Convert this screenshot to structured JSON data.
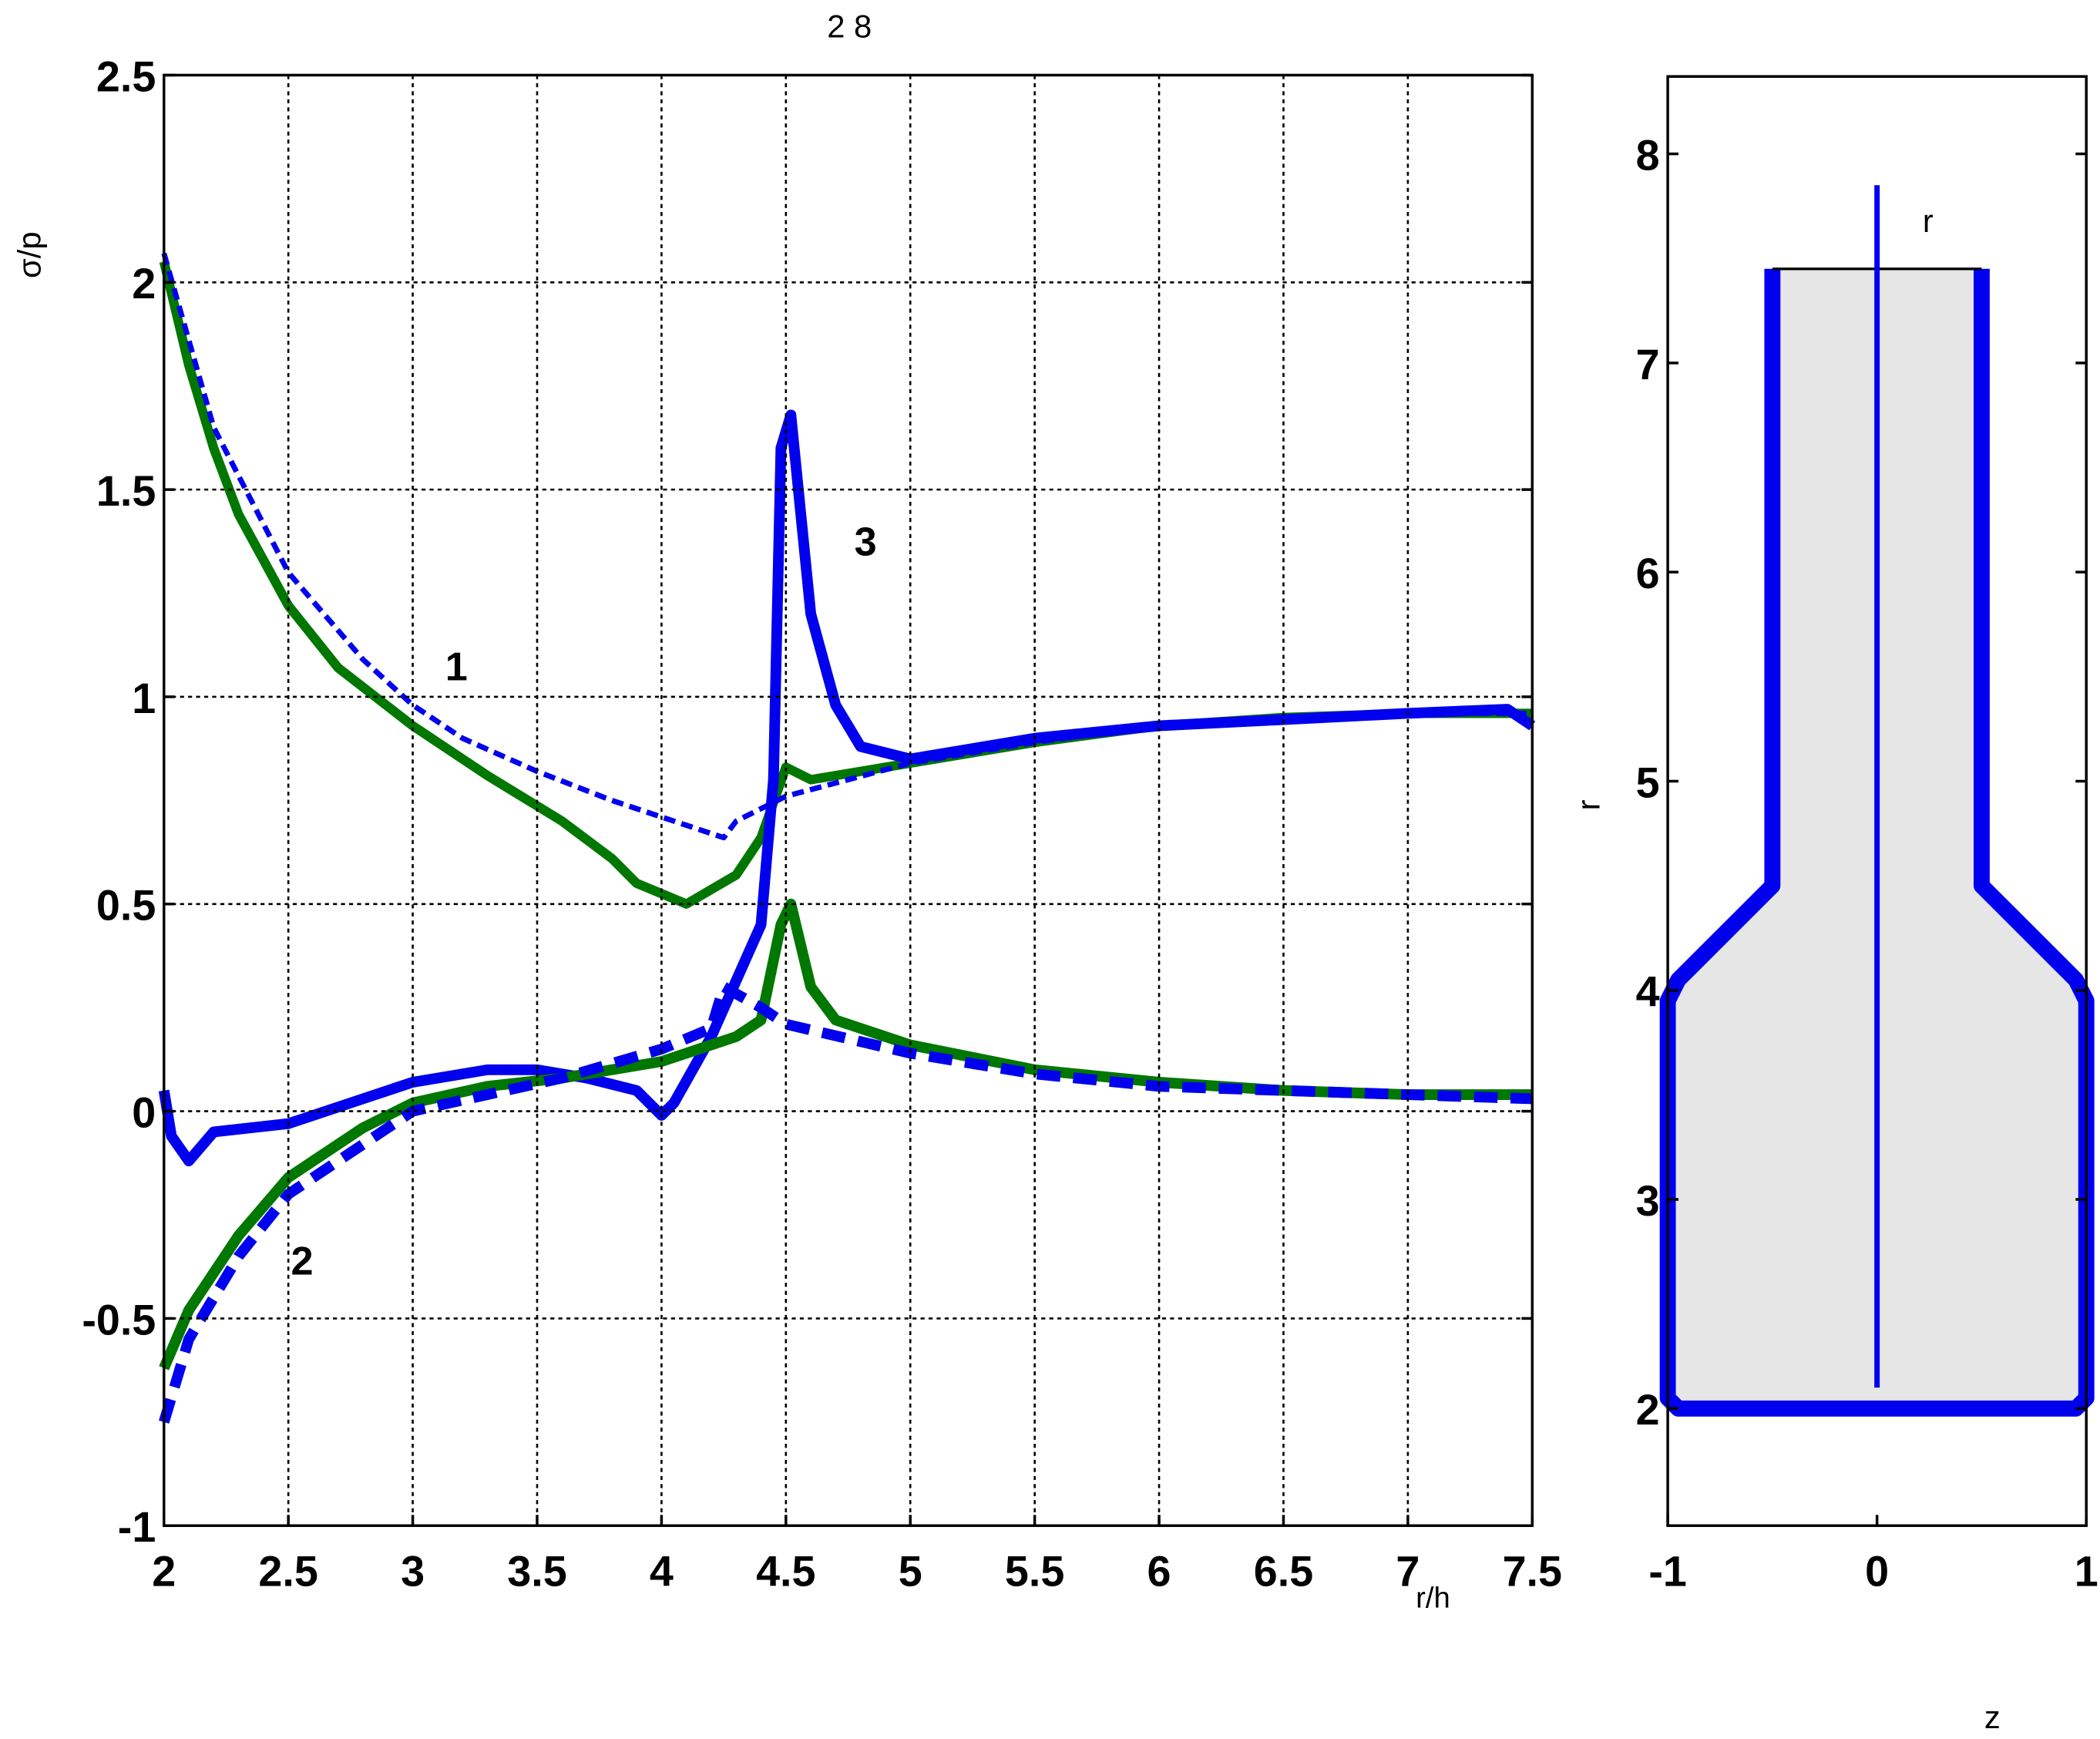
{
  "chart_data": [
    {
      "type": "line",
      "title": "2  8",
      "xlabel": "r/h",
      "ylabel": "σ/p",
      "xlim": [
        2,
        7.5
      ],
      "ylim": [
        -1,
        2.5
      ],
      "xticks": [
        2,
        2.5,
        3,
        3.5,
        4,
        4.5,
        5,
        5.5,
        6,
        6.5,
        7,
        7.5
      ],
      "yticks": [
        -1,
        -0.5,
        0,
        0.5,
        1,
        1.5,
        2,
        2.5
      ],
      "grid": true,
      "annotations": [
        "1",
        "2",
        "3"
      ],
      "series": [
        {
          "color": "#007700",
          "dash": false,
          "linewidth": 7,
          "x": [
            2,
            2.1,
            2.2,
            2.3,
            2.5,
            2.7,
            3,
            3.3,
            3.6,
            3.8,
            3.9,
            4.1,
            4.3,
            4.4,
            4.5,
            4.6,
            5,
            5.5,
            6,
            6.5,
            7,
            7.5
          ],
          "values": [
            2.05,
            1.8,
            1.6,
            1.44,
            1.22,
            1.07,
            0.93,
            0.81,
            0.7,
            0.61,
            0.55,
            0.5,
            0.57,
            0.66,
            0.83,
            0.8,
            0.84,
            0.89,
            0.93,
            0.95,
            0.96,
            0.96
          ]
        },
        {
          "color": "#0000ee",
          "dash": true,
          "linewidth": 4,
          "x": [
            2,
            2.2,
            2.5,
            2.8,
            3,
            3.2,
            3.5,
            3.8,
            4,
            4.2,
            4.25,
            4.3,
            4.5,
            5,
            5.5,
            6,
            7,
            7.5
          ],
          "values": [
            2.07,
            1.65,
            1.3,
            1.09,
            0.98,
            0.9,
            0.82,
            0.75,
            0.71,
            0.67,
            0.66,
            0.7,
            0.76,
            0.84,
            0.89,
            0.93,
            0.96,
            0.96
          ]
        },
        {
          "color": "#0000ee",
          "dash": false,
          "linewidth": 8,
          "x": [
            2,
            2.03,
            2.1,
            2.2,
            2.5,
            2.8,
            3,
            3.3,
            3.5,
            3.7,
            3.9,
            4,
            4.05,
            4.2,
            4.4,
            4.45,
            4.48,
            4.52,
            4.6,
            4.7,
            4.8,
            5,
            5.5,
            6,
            7,
            7.4,
            7.5
          ],
          "values": [
            0.05,
            -0.06,
            -0.12,
            -0.05,
            -0.03,
            0.03,
            0.07,
            0.1,
            0.1,
            0.08,
            0.05,
            -0.01,
            0.02,
            0.18,
            0.45,
            0.8,
            1.6,
            1.68,
            1.2,
            0.98,
            0.88,
            0.85,
            0.9,
            0.93,
            0.96,
            0.97,
            0.93
          ]
        },
        {
          "color": "#007700",
          "dash": false,
          "linewidth": 8,
          "x": [
            2,
            2.1,
            2.3,
            2.5,
            2.8,
            3,
            3.3,
            3.6,
            4,
            4.3,
            4.4,
            4.48,
            4.52,
            4.6,
            4.7,
            5,
            5.5,
            6,
            6.5,
            7,
            7.5
          ],
          "values": [
            -0.62,
            -0.48,
            -0.3,
            -0.16,
            -0.04,
            0.02,
            0.06,
            0.08,
            0.12,
            0.18,
            0.22,
            0.45,
            0.5,
            0.3,
            0.22,
            0.16,
            0.1,
            0.07,
            0.05,
            0.04,
            0.04
          ]
        },
        {
          "color": "#0000ee",
          "dash": true,
          "linewidth": 8,
          "x": [
            2,
            2.1,
            2.3,
            2.5,
            2.8,
            3,
            3.3,
            3.6,
            4,
            4.2,
            4.25,
            4.4,
            4.5,
            5,
            5.5,
            6,
            7,
            7.5
          ],
          "values": [
            -0.75,
            -0.55,
            -0.35,
            -0.2,
            -0.08,
            0,
            0.04,
            0.08,
            0.15,
            0.2,
            0.3,
            0.25,
            0.21,
            0.14,
            0.09,
            0.06,
            0.04,
            0.03
          ]
        }
      ]
    },
    {
      "type": "line",
      "xlabel": "z",
      "ylabel": "r",
      "xlim": [
        -1,
        1
      ],
      "ylim": [
        1.44,
        8.37
      ],
      "xticks": [
        -1,
        0,
        1
      ],
      "yticks": [
        2,
        3,
        4,
        5,
        6,
        7,
        8
      ],
      "grid": false,
      "annotations": [
        "r"
      ],
      "series": [
        {
          "color": "#0000ee",
          "fill": "#e6e6e6",
          "dash": false,
          "linewidth": 12,
          "x": [
            -0.5,
            -0.5,
            -0.95,
            -1,
            -1,
            -0.95,
            0.95,
            1,
            1,
            0.95,
            0.5,
            0.5
          ],
          "values": [
            7.45,
            4.5,
            4.05,
            3.95,
            2.05,
            2,
            2,
            2.05,
            3.95,
            4.05,
            4.5,
            7.45
          ]
        },
        {
          "color": "#000000",
          "dash": false,
          "linewidth": 2,
          "x": [
            -0.5,
            0.5
          ],
          "values": [
            7.45,
            7.45
          ]
        },
        {
          "color": "#0000ee",
          "dash": false,
          "linewidth": 4,
          "x": [
            0,
            0
          ],
          "values": [
            2.1,
            7.85
          ]
        }
      ]
    }
  ]
}
